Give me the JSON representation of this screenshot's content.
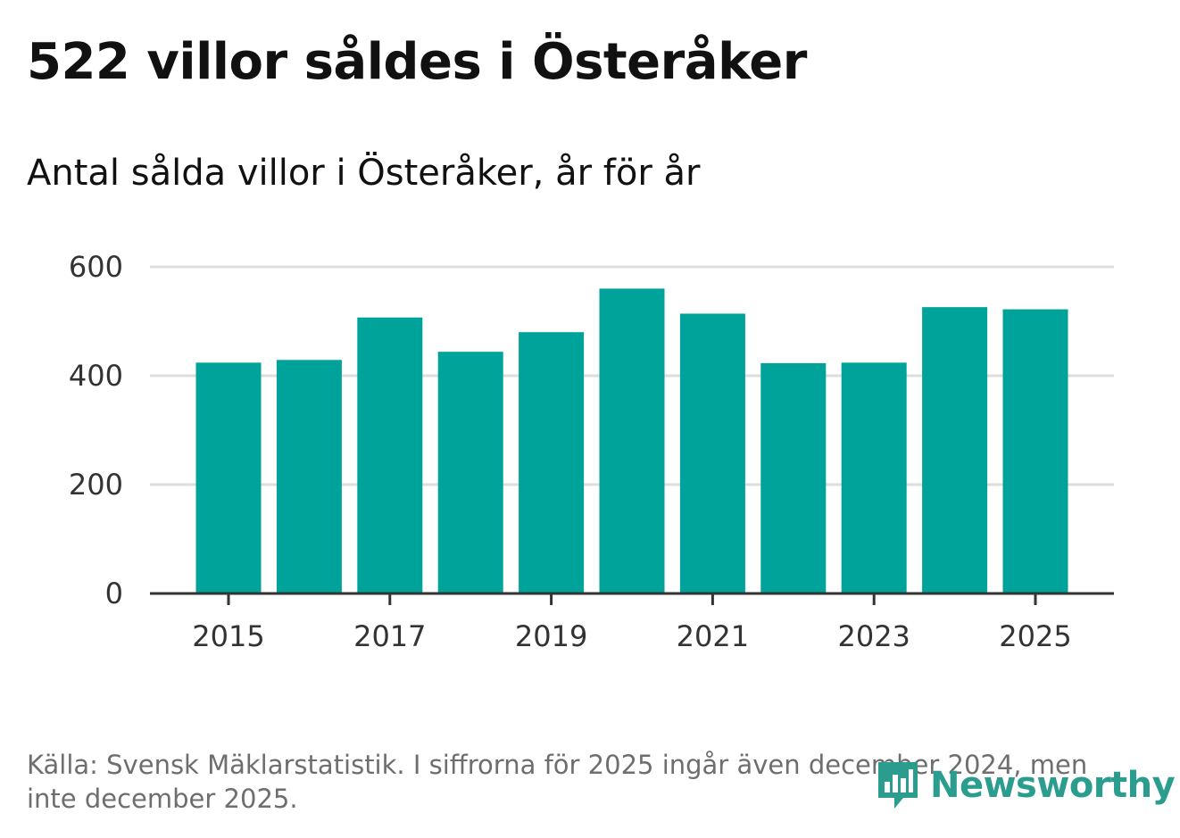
{
  "title": "522 villor såldes i Österåker",
  "subtitle": "Antal sålda villor i Österåker, år för år",
  "source": "Källa: Svensk Mäklarstatistik. I siffrorna för 2025 ingår även december 2024, men inte december 2025.",
  "logo_text": "Newsworthy",
  "colors": {
    "bar": "#00a39a",
    "grid": "#dddddd",
    "axis": "#333333",
    "logo": "#2a9d8f"
  },
  "chart_data": {
    "type": "bar",
    "title": "522 villor såldes i Österåker",
    "subtitle": "Antal sålda villor i Österåker, år för år",
    "categories": [
      "2015",
      "2016",
      "2017",
      "2018",
      "2019",
      "2020",
      "2021",
      "2022",
      "2023",
      "2024",
      "2025"
    ],
    "values": [
      424,
      429,
      507,
      444,
      480,
      560,
      514,
      423,
      424,
      526,
      522
    ],
    "xlabel": "",
    "ylabel": "",
    "ylim": [
      0,
      600
    ],
    "yticks": [
      0,
      200,
      400,
      600
    ],
    "ytick_labels": [
      "0",
      "200",
      "400",
      "600"
    ],
    "xtick_labels": [
      "2015",
      "2017",
      "2019",
      "2021",
      "2023",
      "2025"
    ],
    "grid": true
  }
}
